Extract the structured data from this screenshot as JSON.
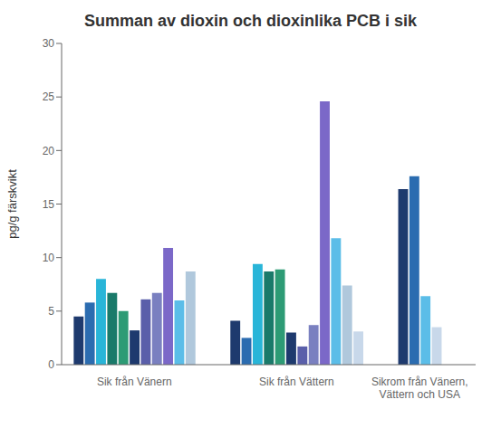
{
  "chart_data": {
    "type": "bar",
    "title": "Summan av dioxin och dioxinlika PCB i sik",
    "ylabel": "pg/g färskvikt",
    "categories": [
      "Sik från Vänern",
      "Sik från Vättern",
      "Sikrom från Vänern,\nVättern och USA"
    ],
    "values": [
      [
        4.5,
        5.8,
        8.0,
        6.7,
        5.0,
        3.2,
        6.1,
        6.7,
        10.9,
        6.0,
        8.7
      ],
      [
        4.1,
        2.5,
        9.4,
        8.7,
        8.9,
        3.0,
        1.7,
        3.7,
        24.6,
        11.8,
        7.4,
        3.1
      ],
      [
        16.4,
        17.6,
        6.4,
        3.5
      ]
    ],
    "colors": [
      [
        "#1e3a6e",
        "#2b6cb0",
        "#29b5d8",
        "#1a7a6a",
        "#2d9b75",
        "#1e3a6e",
        "#5a5faa",
        "#7a80c0",
        "#7b68c8",
        "#5bbde8",
        "#b0c8dc"
      ],
      [
        "#1e3a6e",
        "#2b6cb0",
        "#29b5d8",
        "#1a7a6a",
        "#2d9b75",
        "#1e3a6e",
        "#5a5faa",
        "#7a80c0",
        "#7b68c8",
        "#5bbde8",
        "#b0c8dc",
        "#c8d8ea"
      ],
      [
        "#1e3a6e",
        "#2b6cb0",
        "#5bbde8",
        "#c8d8ea"
      ]
    ],
    "ylim": [
      0,
      30
    ],
    "yticks": [
      0,
      5,
      10,
      15,
      20,
      25,
      30
    ],
    "grid": false
  }
}
